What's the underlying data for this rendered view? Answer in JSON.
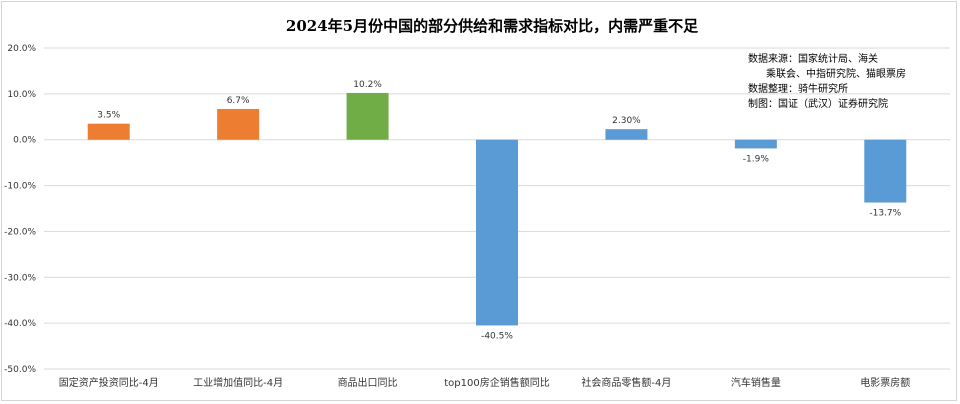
{
  "chart_data": {
    "type": "bar",
    "title": "2024年5月份中国的部分供给和需求指标对比，内需严重不足",
    "categories": [
      "固定资产投资同比-4月",
      "工业增加值同比-4月",
      "商品出口同比",
      "top100房企销售额同比",
      "社会商品零售额-4月",
      "汽车销售量",
      "电影票房额"
    ],
    "values": [
      3.5,
      6.7,
      10.2,
      -40.5,
      2.3,
      -1.9,
      -13.7
    ],
    "data_labels": [
      "3.5%",
      "6.7%",
      "10.2%",
      "-40.5%",
      "2.30%",
      "-1.9%",
      "-13.7%"
    ],
    "bar_colors": [
      "#ED7D31",
      "#ED7D31",
      "#70AD47",
      "#5B9BD5",
      "#5B9BD5",
      "#5B9BD5",
      "#5B9BD5"
    ],
    "ylim": [
      -50,
      20
    ],
    "yticks": [
      20,
      10,
      0,
      -10,
      -20,
      -30,
      -40,
      -50
    ],
    "ytick_labels": [
      "20.0%",
      "10.0%",
      "0.0%",
      "-10.0%",
      "-20.0%",
      "-30.0%",
      "-40.0%",
      "-50.0%"
    ],
    "grid": true,
    "xlabel": "",
    "ylabel": "",
    "source_notes": [
      "数据来源：国家统计局、海关",
      "乘联会、中指研究院、猫眼票房",
      "数据整理：骑牛研究所",
      "制图：国证（武汉）证券研究院"
    ]
  }
}
